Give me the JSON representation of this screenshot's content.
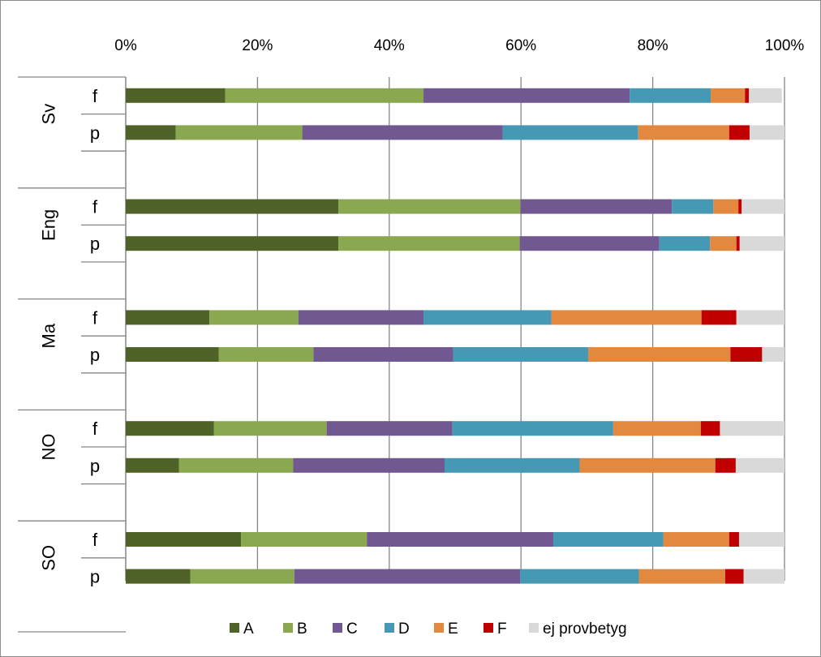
{
  "chart_data": {
    "type": "bar",
    "orientation": "horizontal",
    "stacked": "percent",
    "xlim": [
      0,
      100
    ],
    "xticks": [
      "0%",
      "20%",
      "40%",
      "60%",
      "80%",
      "100%"
    ],
    "grid": true,
    "legend_position": "bottom",
    "colors": [
      "#4f6228",
      "#8aa84f",
      "#725891",
      "#4699b4",
      "#e2883f",
      "#c00000",
      "#d9d9d9"
    ],
    "groups": [
      {
        "name": "Sv",
        "rows": [
          {
            "label": "f",
            "values": [
              15.1,
              30.1,
              31.3,
              12.3,
              5.2,
              0.6,
              5.0
            ]
          },
          {
            "label": "p",
            "values": [
              7.6,
              19.2,
              30.4,
              20.6,
              13.8,
              3.1,
              5.3
            ]
          }
        ]
      },
      {
        "name": "Eng",
        "rows": [
          {
            "label": "f",
            "values": [
              32.3,
              27.6,
              23.0,
              6.3,
              3.8,
              0.5,
              6.5
            ]
          },
          {
            "label": "p",
            "values": [
              32.3,
              27.5,
              21.2,
              7.7,
              4.0,
              0.5,
              6.8
            ]
          }
        ]
      },
      {
        "name": "Ma",
        "rows": [
          {
            "label": "f",
            "values": [
              12.7,
              13.5,
              19.0,
              19.4,
              22.8,
              5.3,
              7.3
            ]
          },
          {
            "label": "p",
            "values": [
              14.1,
              14.4,
              21.2,
              20.5,
              21.6,
              4.8,
              3.4
            ]
          }
        ]
      },
      {
        "name": "NO",
        "rows": [
          {
            "label": "f",
            "values": [
              13.4,
              17.1,
              19.1,
              24.4,
              13.3,
              2.9,
              9.8
            ]
          },
          {
            "label": "p",
            "values": [
              8.1,
              17.3,
              23.0,
              20.5,
              20.6,
              3.1,
              7.4
            ]
          }
        ]
      },
      {
        "name": "SO",
        "rows": [
          {
            "label": "f",
            "values": [
              17.5,
              19.1,
              28.3,
              16.7,
              10.0,
              1.5,
              6.9
            ]
          },
          {
            "label": "p",
            "values": [
              9.8,
              15.8,
              34.3,
              18.0,
              13.1,
              2.8,
              6.2
            ]
          }
        ]
      }
    ],
    "series": [
      {
        "name": "A"
      },
      {
        "name": "B"
      },
      {
        "name": "C"
      },
      {
        "name": "D"
      },
      {
        "name": "E"
      },
      {
        "name": "F"
      },
      {
        "name": "ej provbetyg"
      }
    ]
  }
}
